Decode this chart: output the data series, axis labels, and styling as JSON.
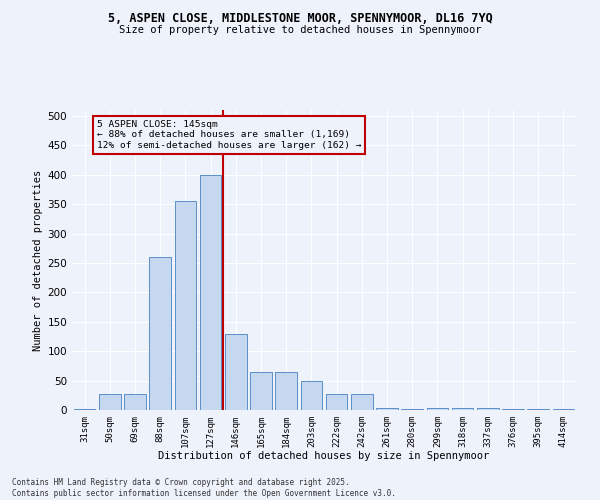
{
  "title_line1": "5, ASPEN CLOSE, MIDDLESTONE MOOR, SPENNYMOOR, DL16 7YQ",
  "title_line2": "Size of property relative to detached houses in Spennymoor",
  "xlabel": "Distribution of detached houses by size in Spennymoor",
  "ylabel": "Number of detached properties",
  "categories": [
    "31sqm",
    "50sqm",
    "69sqm",
    "88sqm",
    "107sqm",
    "127sqm",
    "146sqm",
    "165sqm",
    "184sqm",
    "203sqm",
    "222sqm",
    "242sqm",
    "261sqm",
    "280sqm",
    "299sqm",
    "318sqm",
    "337sqm",
    "376sqm",
    "395sqm",
    "414sqm"
  ],
  "values": [
    2,
    28,
    28,
    260,
    355,
    400,
    130,
    65,
    65,
    50,
    27,
    27,
    3,
    2,
    4,
    4,
    4,
    1,
    1,
    1
  ],
  "bar_color": "#c5d8f0",
  "bar_edge_color": "#5b8fc9",
  "vline_x": 5.5,
  "vline_color": "#c00000",
  "annotation_text": "5 ASPEN CLOSE: 145sqm\n← 88% of detached houses are smaller (1,169)\n12% of semi-detached houses are larger (162) →",
  "footer_line1": "Contains HM Land Registry data © Crown copyright and database right 2025.",
  "footer_line2": "Contains public sector information licensed under the Open Government Licence v3.0.",
  "background_color": "#eef2fb",
  "ylim": [
    0,
    510
  ],
  "yticks": [
    0,
    50,
    100,
    150,
    200,
    250,
    300,
    350,
    400,
    450,
    500
  ]
}
